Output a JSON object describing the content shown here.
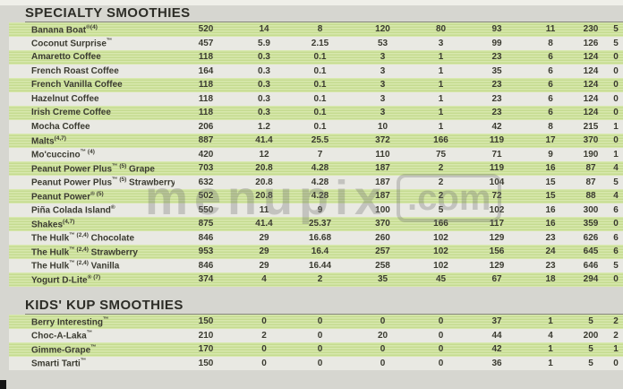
{
  "watermark": {
    "text": "menupix",
    "suffix": ".com"
  },
  "sections": [
    {
      "title": "SPECIALTY SMOOTHIES",
      "rows": [
        {
          "name": "Banana Boat",
          "marks": "®(4)",
          "suffix": "",
          "values": [
            "520",
            "14",
            "8",
            "120",
            "80",
            "93",
            "11",
            "230",
            "5"
          ]
        },
        {
          "name": "Coconut Surprise",
          "marks": "™",
          "suffix": "",
          "values": [
            "457",
            "5.9",
            "2.15",
            "53",
            "3",
            "99",
            "8",
            "126",
            "5"
          ]
        },
        {
          "name": "Amaretto Coffee",
          "marks": "",
          "suffix": "",
          "values": [
            "118",
            "0.3",
            "0.1",
            "3",
            "1",
            "23",
            "6",
            "124",
            "0"
          ]
        },
        {
          "name": "French Roast Coffee",
          "marks": "",
          "suffix": "",
          "values": [
            "164",
            "0.3",
            "0.1",
            "3",
            "1",
            "35",
            "6",
            "124",
            "0"
          ]
        },
        {
          "name": "French Vanilla Coffee",
          "marks": "",
          "suffix": "",
          "values": [
            "118",
            "0.3",
            "0.1",
            "3",
            "1",
            "23",
            "6",
            "124",
            "0"
          ]
        },
        {
          "name": "Hazelnut Coffee",
          "marks": "",
          "suffix": "",
          "values": [
            "118",
            "0.3",
            "0.1",
            "3",
            "1",
            "23",
            "6",
            "124",
            "0"
          ]
        },
        {
          "name": "Irish Creme Coffee",
          "marks": "",
          "suffix": "",
          "values": [
            "118",
            "0.3",
            "0.1",
            "3",
            "1",
            "23",
            "6",
            "124",
            "0"
          ]
        },
        {
          "name": "Mocha Coffee",
          "marks": "",
          "suffix": "",
          "values": [
            "206",
            "1.2",
            "0.1",
            "10",
            "1",
            "42",
            "8",
            "215",
            "1"
          ]
        },
        {
          "name": "Malts",
          "marks": "(4,7)",
          "suffix": "",
          "values": [
            "887",
            "41.4",
            "25.5",
            "372",
            "166",
            "119",
            "17",
            "370",
            "0"
          ]
        },
        {
          "name": "Mo'cuccino",
          "marks": "™ (4)",
          "suffix": "",
          "values": [
            "420",
            "12",
            "7",
            "110",
            "75",
            "71",
            "9",
            "190",
            "1"
          ]
        },
        {
          "name": "Peanut Power Plus",
          "marks": "™ (5)",
          "suffix": "Grape",
          "values": [
            "703",
            "20.8",
            "4.28",
            "187",
            "2",
            "119",
            "16",
            "87",
            "4"
          ]
        },
        {
          "name": "Peanut Power Plus",
          "marks": "™ (5)",
          "suffix": "Strawberry",
          "values": [
            "632",
            "20.8",
            "4.28",
            "187",
            "2",
            "104",
            "15",
            "87",
            "5"
          ]
        },
        {
          "name": "Peanut Power",
          "marks": "® (5)",
          "suffix": "",
          "values": [
            "502",
            "20.8",
            "4.28",
            "187",
            "2",
            "72",
            "15",
            "88",
            "4"
          ]
        },
        {
          "name": "Piña Colada Island",
          "marks": "®",
          "suffix": "",
          "values": [
            "550",
            "11",
            "9",
            "100",
            "5",
            "102",
            "16",
            "300",
            "6"
          ]
        },
        {
          "name": "Shakes",
          "marks": "(4,7)",
          "suffix": "",
          "values": [
            "875",
            "41.4",
            "25.37",
            "370",
            "166",
            "117",
            "16",
            "359",
            "0"
          ]
        },
        {
          "name": "The Hulk",
          "marks": "™ (2,4)",
          "suffix": "Chocolate",
          "values": [
            "846",
            "29",
            "16.68",
            "260",
            "102",
            "129",
            "23",
            "626",
            "6"
          ]
        },
        {
          "name": "The Hulk",
          "marks": "™ (2,4)",
          "suffix": "Strawberry",
          "values": [
            "953",
            "29",
            "16.4",
            "257",
            "102",
            "156",
            "24",
            "645",
            "6"
          ]
        },
        {
          "name": "The Hulk",
          "marks": "™ (2,4)",
          "suffix": "Vanilla",
          "values": [
            "846",
            "29",
            "16.44",
            "258",
            "102",
            "129",
            "23",
            "646",
            "5"
          ]
        },
        {
          "name": "Yogurt D-Lite",
          "marks": "® (7)",
          "suffix": "",
          "values": [
            "374",
            "4",
            "2",
            "35",
            "45",
            "67",
            "18",
            "294",
            "0"
          ]
        }
      ]
    },
    {
      "title": "KIDS' KUP SMOOTHIES",
      "rows": [
        {
          "name": "Berry Interesting",
          "marks": "™",
          "suffix": "",
          "values": [
            "150",
            "0",
            "0",
            "0",
            "0",
            "37",
            "1",
            "5",
            "2"
          ]
        },
        {
          "name": "Choc-A-Laka",
          "marks": "™",
          "suffix": "",
          "values": [
            "210",
            "2",
            "0",
            "20",
            "0",
            "44",
            "4",
            "200",
            "2"
          ]
        },
        {
          "name": "Gimme-Grape",
          "marks": "™",
          "suffix": "",
          "values": [
            "170",
            "0",
            "0",
            "0",
            "0",
            "42",
            "1",
            "5",
            "1"
          ]
        },
        {
          "name": "Smarti Tarti",
          "marks": "™",
          "suffix": "",
          "values": [
            "150",
            "0",
            "0",
            "0",
            "0",
            "36",
            "1",
            "5",
            "0"
          ]
        }
      ]
    }
  ],
  "colors": {
    "page_bg": "#d6d6d0",
    "row_green": "#c5db90",
    "row_green_stripe": "#d8e8ae",
    "row_plain": "#e9e9e3",
    "text": "#3a3a30",
    "header_text": "#2d2d27"
  }
}
